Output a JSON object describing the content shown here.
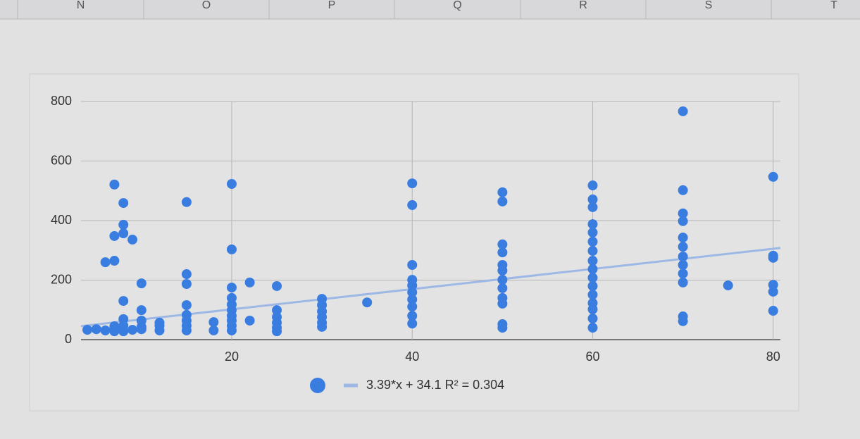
{
  "columns": [
    "N",
    "O",
    "P",
    "Q",
    "R",
    "S",
    "T"
  ],
  "chart_data": {
    "type": "scatter",
    "xlim": [
      3.3,
      80.8
    ],
    "xticks": [
      20,
      40,
      60,
      80
    ],
    "ylim": [
      0,
      800
    ],
    "yticks": [
      0,
      200,
      400,
      600,
      800
    ],
    "grid": true,
    "series": [
      {
        "color": "#3a7de0",
        "x": [
          4,
          5,
          6,
          6,
          7,
          7,
          7,
          7,
          7,
          7,
          8,
          8,
          8,
          8,
          8,
          8,
          8,
          9,
          9,
          10,
          10,
          10,
          10,
          10,
          12,
          12,
          12,
          15,
          15,
          15,
          15,
          15,
          15,
          15,
          15,
          18,
          18,
          20,
          20,
          20,
          20,
          20,
          20,
          20,
          20,
          20,
          20,
          22,
          22,
          25,
          25,
          25,
          25,
          25,
          25,
          30,
          30,
          30,
          30,
          30,
          30,
          35,
          40,
          40,
          40,
          40,
          40,
          40,
          40,
          40,
          40,
          40,
          50,
          50,
          50,
          50,
          50,
          50,
          50,
          50,
          50,
          50,
          50,
          50,
          60,
          60,
          60,
          60,
          60,
          60,
          60,
          60,
          60,
          60,
          60,
          60,
          60,
          60,
          60,
          60,
          70,
          70,
          70,
          70,
          70,
          70,
          70,
          70,
          70,
          70,
          70,
          70,
          75,
          80,
          80,
          80,
          80,
          80,
          80
        ],
        "values": [
          33,
          35,
          31,
          260,
          521,
          348,
          265,
          45,
          28,
          35,
          459,
          386,
          357,
          130,
          69,
          47,
          28,
          336,
          33,
          189,
          99,
          64,
          43,
          35,
          57,
          47,
          31,
          462,
          220,
          187,
          116,
          83,
          64,
          47,
          31,
          59,
          31,
          523,
          303,
          175,
          140,
          118,
          99,
          80,
          64,
          47,
          31,
          192,
          64,
          180,
          99,
          76,
          57,
          40,
          28,
          137,
          116,
          95,
          76,
          57,
          43,
          125,
          525,
          452,
          251,
          201,
          182,
          159,
          135,
          111,
          80,
          54,
          495,
          464,
          320,
          293,
          251,
          232,
          201,
          173,
          140,
          121,
          52,
          40,
          518,
          471,
          445,
          388,
          360,
          329,
          298,
          265,
          237,
          208,
          180,
          151,
          123,
          102,
          71,
          40,
          767,
          502,
          424,
          398,
          343,
          312,
          279,
          251,
          222,
          192,
          78,
          62,
          182,
          547,
          282,
          275,
          184,
          161,
          97
        ]
      }
    ],
    "trendline": {
      "slope": 3.39,
      "intercept": 34.1,
      "color": "#9db8e4",
      "label": "3.39*x + 34.1 R² = 0.304"
    }
  }
}
